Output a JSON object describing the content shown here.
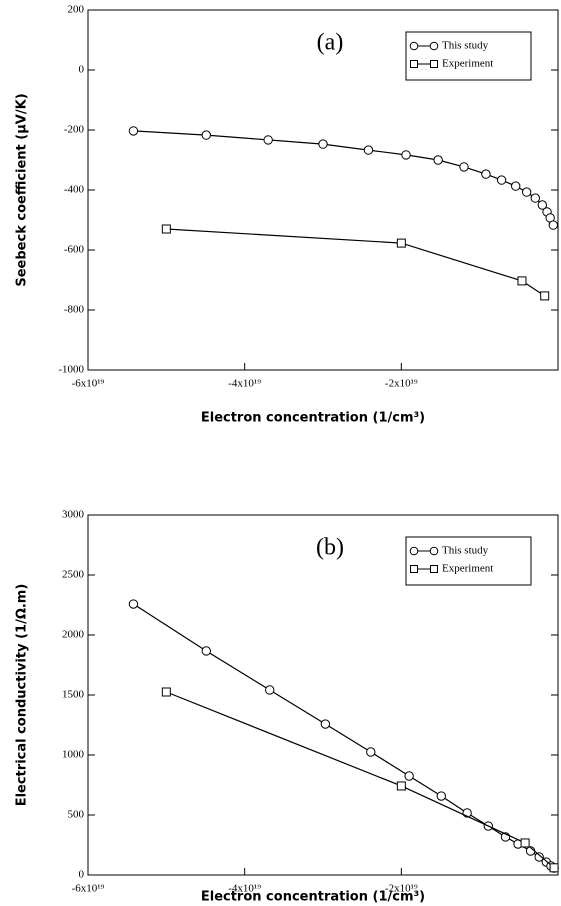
{
  "chart_data": [
    {
      "type": "line",
      "annotation": "(a)",
      "xlabel": "Electron concentration (1/cm³)",
      "ylabel": "Seebeck coefficient (μV/K)",
      "xlim": [
        -6e+19,
        0
      ],
      "xticks": [
        {
          "value": -6e+19,
          "label": "-6x10¹⁹"
        },
        {
          "value": -4e+19,
          "label": "-4x10¹⁹"
        },
        {
          "value": -2e+19,
          "label": "-2x10¹⁹"
        }
      ],
      "ylim": [
        -1000,
        200
      ],
      "yticks": [
        -1000,
        -800,
        -600,
        -400,
        -200,
        0,
        200
      ],
      "legend": "upper right",
      "series": [
        {
          "name": "This study",
          "color": "#000000",
          "marker": "circle",
          "x": [
            -5.42e+19,
            -4.49e+19,
            -3.7e+19,
            -3e+19,
            -2.42e+19,
            -1.94e+19,
            -1.53e+19,
            -1.2e+19,
            -9.2e+18,
            -7.2e+18,
            -5.4e+18,
            -4e+18,
            -2.9e+18,
            -2e+18,
            -1.4e+18,
            -1e+18,
            -6e+17
          ],
          "values": [
            -203,
            -217,
            -233,
            -247,
            -267,
            -283,
            -300,
            -323,
            -347,
            -367,
            -387,
            -407,
            -427,
            -450,
            -473,
            -493,
            -517
          ]
        },
        {
          "name": "Experiment",
          "color": "#000000",
          "marker": "square",
          "x": [
            -5e+19,
            -2e+19,
            -4.6e+18,
            -1.7e+18
          ],
          "values": [
            -530,
            -577,
            -703,
            -753
          ]
        }
      ]
    },
    {
      "type": "line",
      "annotation": "(b)",
      "xlabel": "Electron concentration (1/cm³)",
      "ylabel": "Electrical conductivity (1/Ω.m)",
      "xlim": [
        -6e+19,
        0
      ],
      "xticks": [
        {
          "value": -6e+19,
          "label": "-6x10¹⁹"
        },
        {
          "value": -4e+19,
          "label": "-4x10¹⁹"
        },
        {
          "value": -2e+19,
          "label": "-2x10¹⁹"
        }
      ],
      "ylim": [
        0,
        3000
      ],
      "yticks": [
        0,
        500,
        1000,
        1500,
        2000,
        2500,
        3000
      ],
      "legend": "upper right",
      "series": [
        {
          "name": "This study",
          "color": "#000000",
          "marker": "circle",
          "x": [
            -5.42e+19,
            -4.49e+19,
            -3.68e+19,
            -2.97e+19,
            -2.39e+19,
            -1.9e+19,
            -1.49e+19,
            -1.16e+19,
            -8.9e+18,
            -6.7e+18,
            -5.1e+18,
            -3.5e+18,
            -2.4e+18,
            -1.5e+18,
            -9e+17,
            -5e+17
          ],
          "values": [
            2258,
            1867,
            1542,
            1258,
            1025,
            825,
            658,
            517,
            408,
            317,
            258,
            200,
            150,
            108,
            75,
            58
          ]
        },
        {
          "name": "Experiment",
          "color": "#000000",
          "marker": "square",
          "x": [
            -5e+19,
            -2e+19,
            -4.2e+18,
            -5e+17
          ],
          "values": [
            1525,
            742,
            267,
            60
          ]
        }
      ]
    }
  ]
}
